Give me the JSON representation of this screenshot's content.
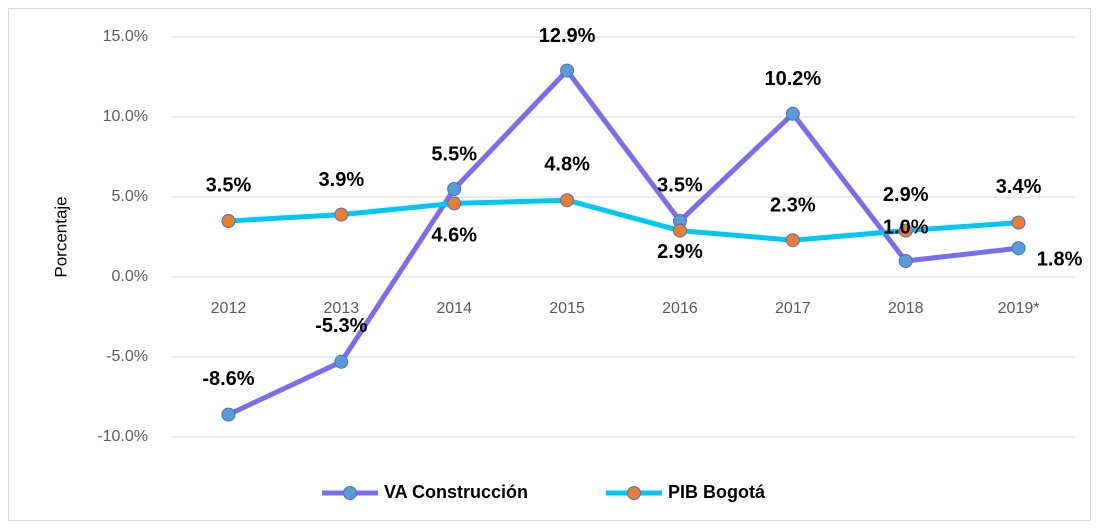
{
  "chart_data": {
    "type": "line",
    "y_label": "Porcentaje",
    "categories": [
      "2012",
      "2013",
      "2014",
      "2015",
      "2016",
      "2017",
      "2018",
      "2019*"
    ],
    "series": [
      {
        "name": "VA Construcción",
        "color": "#7b6cf0",
        "marker_color": "#5b9bd5",
        "values": [
          -8.6,
          -5.3,
          5.5,
          12.9,
          3.5,
          10.2,
          1.0,
          1.8
        ],
        "value_labels": [
          "-8.6%",
          "-5.3%",
          "5.5%",
          "12.9%",
          "3.5%",
          "10.2%",
          "1.0%",
          "1.8%"
        ]
      },
      {
        "name": "PIB Bogotá",
        "color": "#00c8f0",
        "marker_color": "#ed7d31",
        "values": [
          3.5,
          3.9,
          4.6,
          4.8,
          2.9,
          2.3,
          2.9,
          3.4
        ],
        "value_labels": [
          "3.5%",
          "3.9%",
          "4.6%",
          "4.8%",
          "2.9%",
          "2.3%",
          "2.9%",
          "3.4%"
        ]
      }
    ],
    "ylim": [
      -10,
      15
    ],
    "yticks": [
      {
        "value": -10,
        "label": "-10.0%"
      },
      {
        "value": -5,
        "label": "-5.0%"
      },
      {
        "value": 0,
        "label": "0.0%"
      },
      {
        "value": 5,
        "label": "5.0%"
      },
      {
        "value": 10,
        "label": "10.0%"
      },
      {
        "value": 15,
        "label": "15.0%"
      }
    ],
    "grid": true,
    "legend": "bottom"
  }
}
